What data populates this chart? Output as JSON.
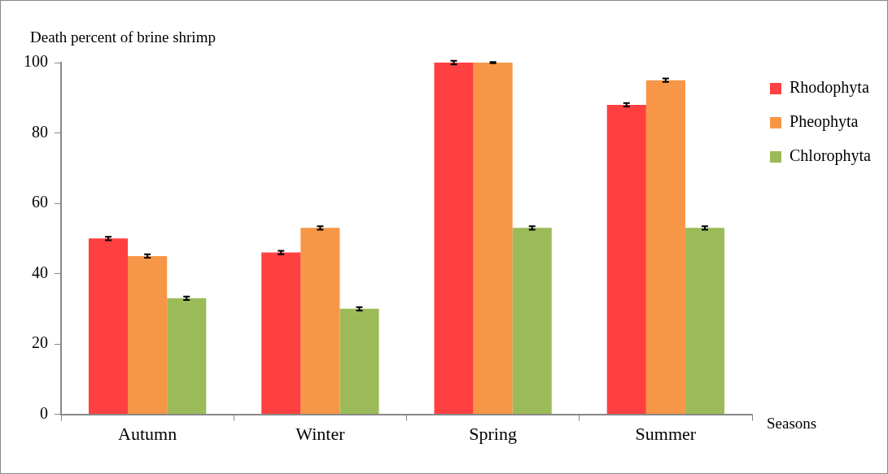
{
  "chart_data": {
    "type": "bar",
    "ylabel": "Death percent of brine shrimp",
    "xlabel": "Seasons",
    "categories": [
      "Autumn",
      "Winter",
      "Spring",
      "Summer"
    ],
    "series": [
      {
        "name": "Rhodophyta",
        "color": "#ff4040",
        "values": [
          50,
          46,
          100,
          88
        ],
        "errors": [
          0.5,
          0.5,
          0.5,
          0.5
        ]
      },
      {
        "name": "Pheophyta",
        "color": "#f79646",
        "values": [
          45,
          53,
          100,
          95
        ],
        "errors": [
          0.5,
          0.5,
          0.2,
          0.5
        ]
      },
      {
        "name": "Chlorophyta",
        "color": "#9bbb59",
        "values": [
          33,
          30,
          53,
          53
        ],
        "errors": [
          0.5,
          0.5,
          0.5,
          0.5
        ]
      }
    ],
    "ylim": [
      0,
      100
    ],
    "yticks": [
      0,
      20,
      40,
      60,
      80,
      100
    ],
    "grid": false,
    "legend": "top right"
  }
}
